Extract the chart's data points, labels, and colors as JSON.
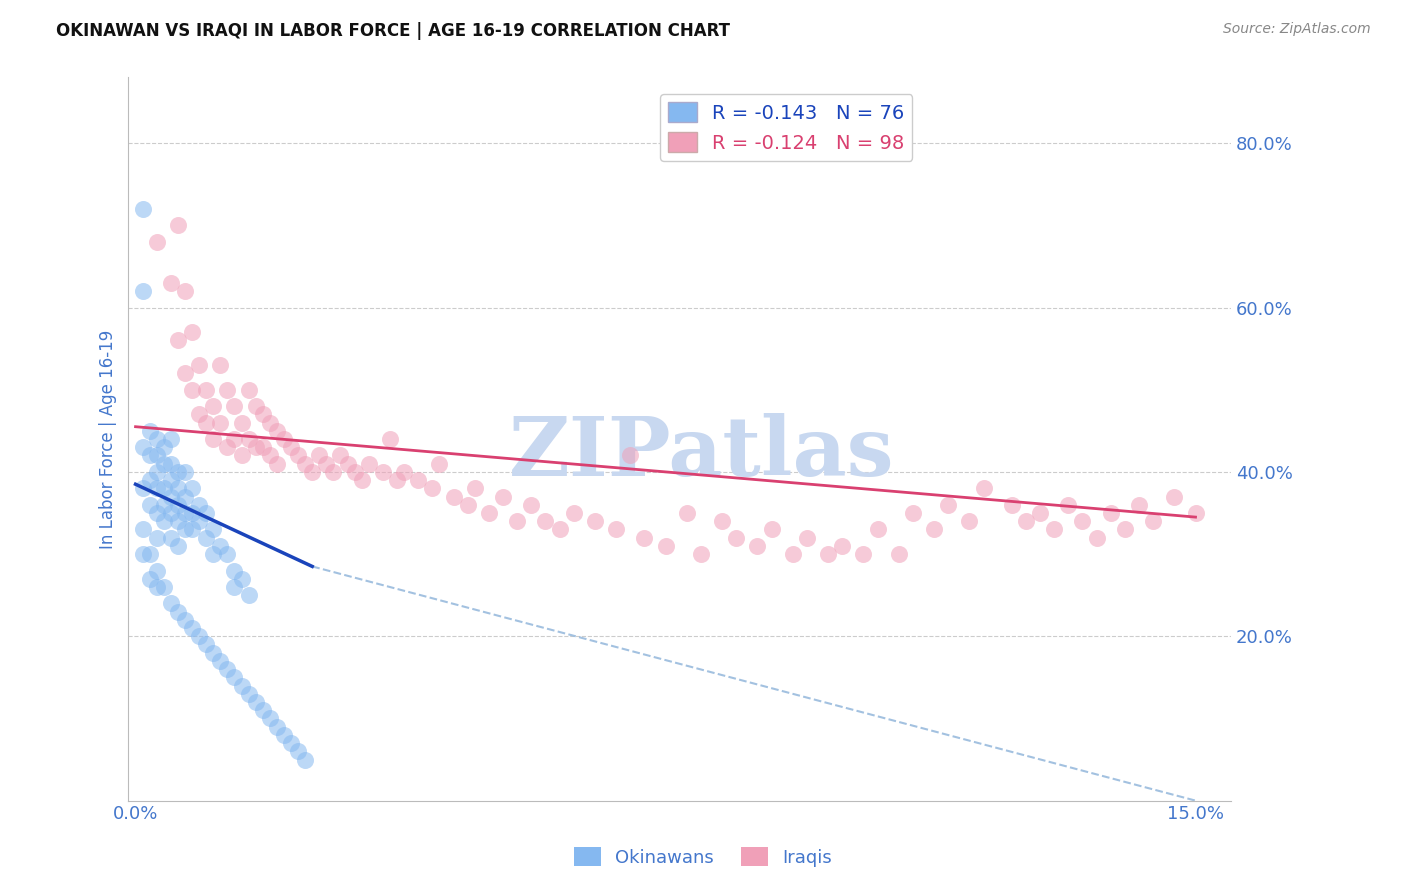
{
  "title": "OKINAWAN VS IRAQI IN LABOR FORCE | AGE 16-19 CORRELATION CHART",
  "source": "Source: ZipAtlas.com",
  "ylabel_left": "In Labor Force | Age 16-19",
  "y_ticks_right": [
    0.2,
    0.4,
    0.6,
    0.8
  ],
  "y_tick_labels_right": [
    "20.0%",
    "40.0%",
    "60.0%",
    "80.0%"
  ],
  "xlim": [
    -0.001,
    0.155
  ],
  "ylim": [
    0.0,
    0.88
  ],
  "legend_blue_r": "R = -0.143",
  "legend_blue_n": "N = 76",
  "legend_pink_r": "R = -0.124",
  "legend_pink_n": "N = 98",
  "blue_color": "#85b8f0",
  "pink_color": "#f0a0b8",
  "blue_line_color": "#1a44bb",
  "pink_line_color": "#d94070",
  "dash_line_color": "#99bbdd",
  "watermark": "ZIPatlas",
  "watermark_color": "#c8d8f0",
  "blue_scatter_x": [
    0.001,
    0.001,
    0.001,
    0.001,
    0.001,
    0.002,
    0.002,
    0.002,
    0.002,
    0.003,
    0.003,
    0.003,
    0.003,
    0.003,
    0.003,
    0.004,
    0.004,
    0.004,
    0.004,
    0.004,
    0.005,
    0.005,
    0.005,
    0.005,
    0.005,
    0.005,
    0.006,
    0.006,
    0.006,
    0.006,
    0.006,
    0.007,
    0.007,
    0.007,
    0.007,
    0.008,
    0.008,
    0.008,
    0.009,
    0.009,
    0.01,
    0.01,
    0.011,
    0.011,
    0.012,
    0.013,
    0.014,
    0.014,
    0.015,
    0.016,
    0.001,
    0.002,
    0.002,
    0.003,
    0.003,
    0.004,
    0.005,
    0.006,
    0.007,
    0.008,
    0.009,
    0.01,
    0.011,
    0.012,
    0.013,
    0.014,
    0.015,
    0.016,
    0.017,
    0.018,
    0.019,
    0.02,
    0.021,
    0.022,
    0.023,
    0.024
  ],
  "blue_scatter_y": [
    0.72,
    0.62,
    0.43,
    0.38,
    0.33,
    0.45,
    0.42,
    0.39,
    0.36,
    0.44,
    0.42,
    0.4,
    0.38,
    0.35,
    0.32,
    0.43,
    0.41,
    0.38,
    0.36,
    0.34,
    0.44,
    0.41,
    0.39,
    0.37,
    0.35,
    0.32,
    0.4,
    0.38,
    0.36,
    0.34,
    0.31,
    0.4,
    0.37,
    0.35,
    0.33,
    0.38,
    0.35,
    0.33,
    0.36,
    0.34,
    0.35,
    0.32,
    0.33,
    0.3,
    0.31,
    0.3,
    0.28,
    0.26,
    0.27,
    0.25,
    0.3,
    0.3,
    0.27,
    0.28,
    0.26,
    0.26,
    0.24,
    0.23,
    0.22,
    0.21,
    0.2,
    0.19,
    0.18,
    0.17,
    0.16,
    0.15,
    0.14,
    0.13,
    0.12,
    0.11,
    0.1,
    0.09,
    0.08,
    0.07,
    0.06,
    0.05
  ],
  "pink_scatter_x": [
    0.003,
    0.005,
    0.006,
    0.006,
    0.007,
    0.007,
    0.008,
    0.008,
    0.009,
    0.009,
    0.01,
    0.01,
    0.011,
    0.011,
    0.012,
    0.012,
    0.013,
    0.013,
    0.014,
    0.014,
    0.015,
    0.015,
    0.016,
    0.016,
    0.017,
    0.017,
    0.018,
    0.018,
    0.019,
    0.019,
    0.02,
    0.02,
    0.021,
    0.022,
    0.023,
    0.024,
    0.025,
    0.026,
    0.027,
    0.028,
    0.029,
    0.03,
    0.031,
    0.032,
    0.033,
    0.035,
    0.036,
    0.037,
    0.038,
    0.04,
    0.042,
    0.043,
    0.045,
    0.047,
    0.048,
    0.05,
    0.052,
    0.054,
    0.056,
    0.058,
    0.06,
    0.062,
    0.065,
    0.068,
    0.07,
    0.072,
    0.075,
    0.078,
    0.08,
    0.083,
    0.085,
    0.088,
    0.09,
    0.093,
    0.095,
    0.098,
    0.1,
    0.103,
    0.105,
    0.108,
    0.11,
    0.113,
    0.115,
    0.118,
    0.12,
    0.124,
    0.126,
    0.128,
    0.13,
    0.132,
    0.134,
    0.136,
    0.138,
    0.14,
    0.142,
    0.144,
    0.147,
    0.15
  ],
  "pink_scatter_y": [
    0.68,
    0.63,
    0.56,
    0.7,
    0.52,
    0.62,
    0.5,
    0.57,
    0.47,
    0.53,
    0.46,
    0.5,
    0.44,
    0.48,
    0.53,
    0.46,
    0.5,
    0.43,
    0.48,
    0.44,
    0.46,
    0.42,
    0.5,
    0.44,
    0.48,
    0.43,
    0.47,
    0.43,
    0.46,
    0.42,
    0.45,
    0.41,
    0.44,
    0.43,
    0.42,
    0.41,
    0.4,
    0.42,
    0.41,
    0.4,
    0.42,
    0.41,
    0.4,
    0.39,
    0.41,
    0.4,
    0.44,
    0.39,
    0.4,
    0.39,
    0.38,
    0.41,
    0.37,
    0.36,
    0.38,
    0.35,
    0.37,
    0.34,
    0.36,
    0.34,
    0.33,
    0.35,
    0.34,
    0.33,
    0.42,
    0.32,
    0.31,
    0.35,
    0.3,
    0.34,
    0.32,
    0.31,
    0.33,
    0.3,
    0.32,
    0.3,
    0.31,
    0.3,
    0.33,
    0.3,
    0.35,
    0.33,
    0.36,
    0.34,
    0.38,
    0.36,
    0.34,
    0.35,
    0.33,
    0.36,
    0.34,
    0.32,
    0.35,
    0.33,
    0.36,
    0.34,
    0.37,
    0.35
  ],
  "blue_line_x": [
    0.0,
    0.025
  ],
  "blue_line_y": [
    0.385,
    0.285
  ],
  "pink_line_x": [
    0.0,
    0.15
  ],
  "pink_line_y": [
    0.455,
    0.345
  ],
  "dash_line_x": [
    0.025,
    0.15
  ],
  "dash_line_y": [
    0.285,
    0.0
  ],
  "background_color": "#ffffff",
  "grid_color": "#cccccc",
  "title_color": "#111111",
  "tick_label_color": "#4477cc"
}
